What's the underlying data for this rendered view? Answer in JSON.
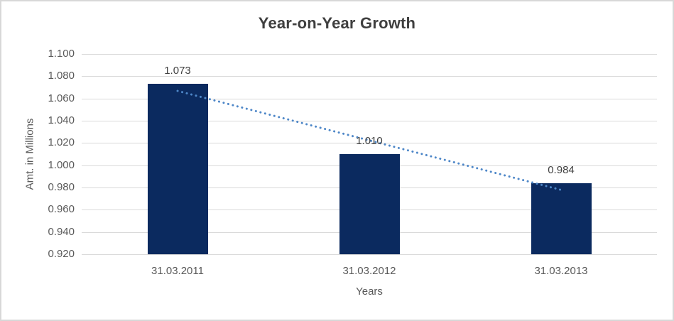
{
  "window": {
    "background": "#ffffff",
    "border_color": "#D8D8D8"
  },
  "chart_data": {
    "type": "bar",
    "title": "Year-on-Year Growth",
    "categories": [
      "31.03.2011",
      "31.03.2012",
      "31.03.2013"
    ],
    "values": [
      1.073,
      1.01,
      0.984
    ],
    "data_labels": [
      "1.073",
      "1.010",
      "0.984"
    ],
    "xlabel": "Years",
    "ylabel": "Amt. in Millions",
    "ylim": [
      0.92,
      1.1
    ],
    "ytick_step": 0.02,
    "ytick_labels": [
      "1.100",
      "1.080",
      "1.060",
      "1.040",
      "1.020",
      "1.000",
      "0.980",
      "0.960",
      "0.940",
      "0.920"
    ],
    "grid": true,
    "legend": "none",
    "trendline": {
      "type": "linear",
      "style": "dotted"
    },
    "colors": {
      "bar": "#0B2A5F",
      "trendline": "#4E87C8",
      "gridline": "#D9D9D9",
      "title_text": "#3F3F3F",
      "axis_text": "#595959",
      "data_label_text": "#404040"
    }
  }
}
